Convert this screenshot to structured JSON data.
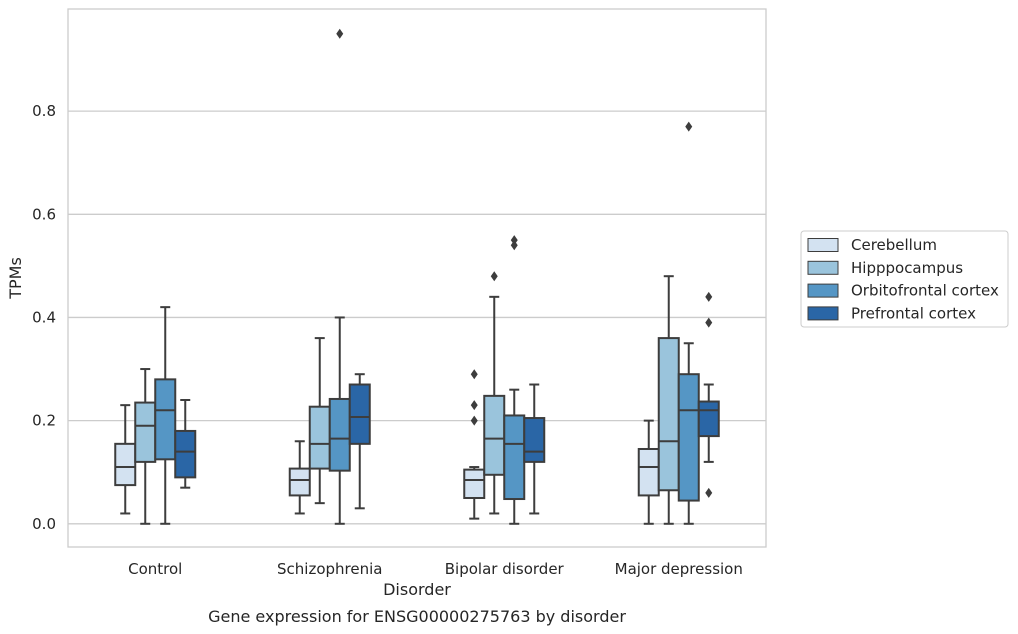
{
  "chart_data": {
    "type": "box",
    "xlabel": "Disorder",
    "ylabel": "TPMs",
    "caption": "Gene expression for ENSG00000275763 by disorder",
    "ylim": [
      -0.045,
      0.998
    ],
    "yticks": [
      "0.0",
      "0.2",
      "0.4",
      "0.6",
      "0.8"
    ],
    "grid": "horizontal",
    "legend_position": "right",
    "categories": [
      "Control",
      "Schizophrenia",
      "Bipolar disorder",
      "Major depression"
    ],
    "series": [
      {
        "name": "Cerebellum",
        "color": "#d3e2f1",
        "boxes": [
          {
            "q1": 0.075,
            "median": 0.11,
            "q3": 0.155,
            "whislo": 0.02,
            "whishi": 0.23,
            "fliers": []
          },
          {
            "q1": 0.055,
            "median": 0.085,
            "q3": 0.107,
            "whislo": 0.02,
            "whishi": 0.16,
            "fliers": []
          },
          {
            "q1": 0.05,
            "median": 0.085,
            "q3": 0.105,
            "whislo": 0.01,
            "whishi": 0.11,
            "fliers": [
              0.2,
              0.23,
              0.29
            ]
          },
          {
            "q1": 0.055,
            "median": 0.11,
            "q3": 0.145,
            "whislo": 0.0,
            "whishi": 0.2,
            "fliers": []
          }
        ]
      },
      {
        "name": "Hipppocampus",
        "color": "#9ac4dc",
        "boxes": [
          {
            "q1": 0.12,
            "median": 0.19,
            "q3": 0.235,
            "whislo": 0.0,
            "whishi": 0.3,
            "fliers": []
          },
          {
            "q1": 0.107,
            "median": 0.155,
            "q3": 0.227,
            "whislo": 0.04,
            "whishi": 0.36,
            "fliers": []
          },
          {
            "q1": 0.095,
            "median": 0.165,
            "q3": 0.248,
            "whislo": 0.02,
            "whishi": 0.44,
            "fliers": [
              0.48
            ]
          },
          {
            "q1": 0.065,
            "median": 0.16,
            "q3": 0.36,
            "whislo": 0.0,
            "whishi": 0.48,
            "fliers": []
          }
        ]
      },
      {
        "name": "Orbitofrontal cortex",
        "color": "#5596c5",
        "boxes": [
          {
            "q1": 0.125,
            "median": 0.22,
            "q3": 0.28,
            "whislo": 0.0,
            "whishi": 0.42,
            "fliers": []
          },
          {
            "q1": 0.103,
            "median": 0.165,
            "q3": 0.242,
            "whislo": 0.0,
            "whishi": 0.4,
            "fliers": [
              0.95
            ]
          },
          {
            "q1": 0.048,
            "median": 0.155,
            "q3": 0.21,
            "whislo": 0.0,
            "whishi": 0.26,
            "fliers": [
              0.54,
              0.55
            ]
          },
          {
            "q1": 0.045,
            "median": 0.22,
            "q3": 0.29,
            "whislo": 0.0,
            "whishi": 0.35,
            "fliers": [
              0.77
            ]
          }
        ]
      },
      {
        "name": "Prefrontal cortex",
        "color": "#2a66a6",
        "boxes": [
          {
            "q1": 0.09,
            "median": 0.14,
            "q3": 0.18,
            "whislo": 0.07,
            "whishi": 0.24,
            "fliers": []
          },
          {
            "q1": 0.155,
            "median": 0.207,
            "q3": 0.27,
            "whislo": 0.03,
            "whishi": 0.29,
            "fliers": []
          },
          {
            "q1": 0.12,
            "median": 0.14,
            "q3": 0.205,
            "whislo": 0.02,
            "whishi": 0.27,
            "fliers": []
          },
          {
            "q1": 0.17,
            "median": 0.22,
            "q3": 0.237,
            "whislo": 0.12,
            "whishi": 0.27,
            "fliers": [
              0.06,
              0.39,
              0.44
            ]
          }
        ]
      }
    ]
  }
}
